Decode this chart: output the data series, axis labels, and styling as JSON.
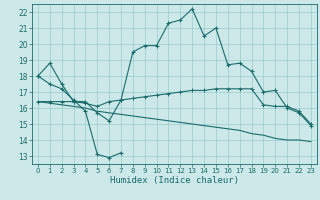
{
  "title": "",
  "xlabel": "Humidex (Indice chaleur)",
  "bg_color": "#cce8e8",
  "grid_color": "#99cccc",
  "line_color": "#1a6b6b",
  "xlim": [
    -0.5,
    23.5
  ],
  "ylim": [
    12.5,
    22.5
  ],
  "yticks": [
    13,
    14,
    15,
    16,
    17,
    18,
    19,
    20,
    21,
    22
  ],
  "xticks": [
    0,
    1,
    2,
    3,
    4,
    5,
    6,
    7,
    8,
    9,
    10,
    11,
    12,
    13,
    14,
    15,
    16,
    17,
    18,
    19,
    20,
    21,
    22,
    23
  ],
  "line1_x": [
    0,
    1,
    2,
    3,
    4,
    5,
    6,
    7,
    8,
    9,
    10,
    11,
    12,
    13,
    14,
    15,
    16,
    17,
    18,
    19,
    20,
    21,
    22,
    23
  ],
  "line1_y": [
    18.0,
    18.8,
    17.5,
    16.4,
    16.4,
    15.7,
    15.2,
    16.5,
    19.5,
    19.9,
    19.9,
    21.3,
    21.5,
    22.2,
    20.5,
    21.0,
    18.7,
    18.8,
    18.3,
    17.0,
    17.1,
    16.0,
    15.7,
    14.9
  ],
  "line2_x": [
    0,
    1,
    2,
    3,
    4,
    5,
    6,
    7
  ],
  "line2_y": [
    18.0,
    17.5,
    17.2,
    16.5,
    15.8,
    13.1,
    12.9,
    13.2
  ],
  "line3_x": [
    0,
    1,
    2,
    3,
    4,
    5,
    6,
    7,
    8,
    9,
    10,
    11,
    12,
    13,
    14,
    15,
    16,
    17,
    18,
    19,
    20,
    21,
    22,
    23
  ],
  "line3_y": [
    16.4,
    16.4,
    16.4,
    16.4,
    16.3,
    16.1,
    16.4,
    16.5,
    16.6,
    16.7,
    16.8,
    16.9,
    17.0,
    17.1,
    17.1,
    17.2,
    17.2,
    17.2,
    17.2,
    16.2,
    16.1,
    16.1,
    15.8,
    15.0
  ],
  "line4_x": [
    0,
    1,
    2,
    3,
    4,
    5,
    6,
    7,
    8,
    9,
    10,
    11,
    12,
    13,
    14,
    15,
    16,
    17,
    18,
    19,
    20,
    21,
    22,
    23
  ],
  "line4_y": [
    16.4,
    16.3,
    16.2,
    16.1,
    16.0,
    15.8,
    15.7,
    15.6,
    15.5,
    15.4,
    15.3,
    15.2,
    15.1,
    15.0,
    14.9,
    14.8,
    14.7,
    14.6,
    14.4,
    14.3,
    14.1,
    14.0,
    14.0,
    13.9
  ]
}
